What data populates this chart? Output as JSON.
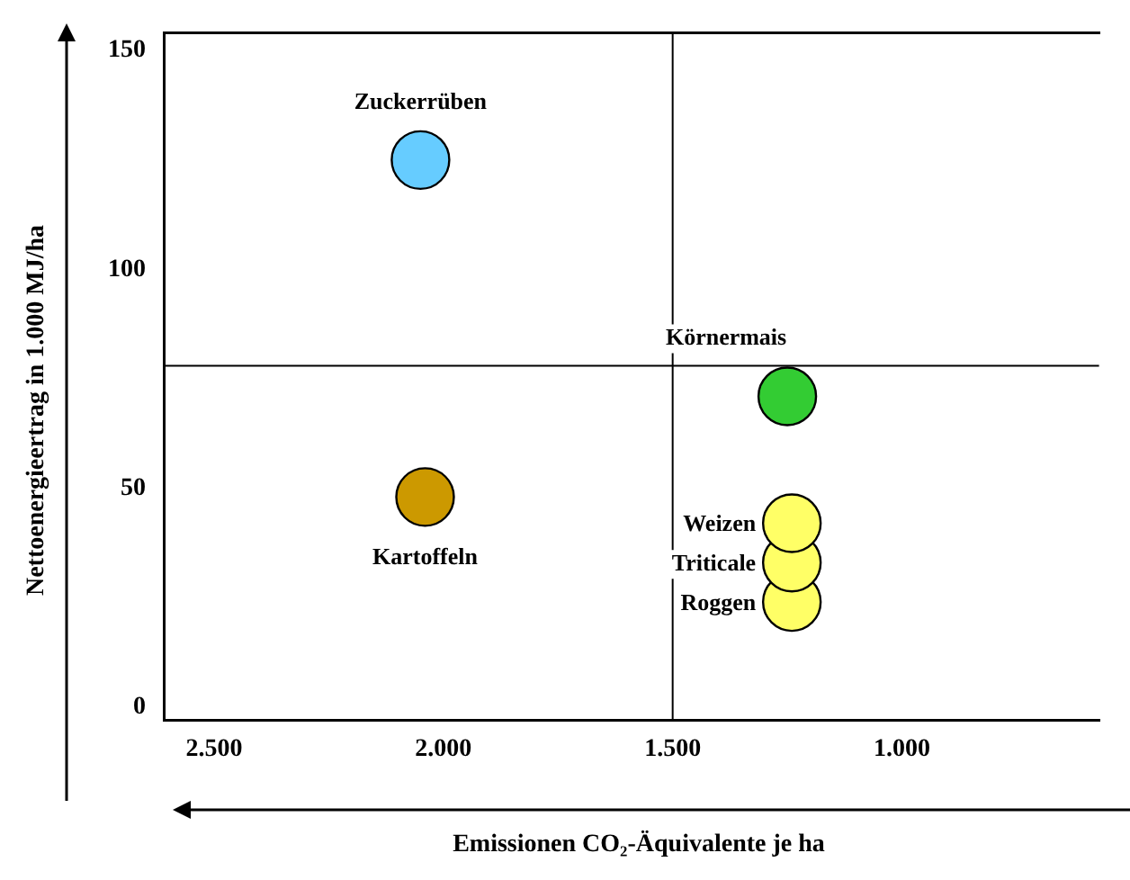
{
  "chart_data": {
    "type": "scatter",
    "xlabel": "Emissionen CO₂-Äquivalente je ha",
    "ylabel": "Nettoenergieertrag in 1.000 MJ/ha",
    "xlim": [
      2610,
      570
    ],
    "xticks": [
      {
        "value": 2500,
        "label": "2.500"
      },
      {
        "value": 2000,
        "label": "2.000"
      },
      {
        "value": 1500,
        "label": "1.500"
      },
      {
        "value": 1000,
        "label": "1.000"
      }
    ],
    "ylim": [
      -3,
      154
    ],
    "yticks": [
      0,
      50,
      100,
      150
    ],
    "grid": false,
    "legend": false,
    "marker": "circle",
    "ref_lines": [
      {
        "axis": "x",
        "value": 1500,
        "color": "#000000"
      },
      {
        "axis": "y",
        "value": 78,
        "color": "#000000"
      }
    ],
    "series": [
      {
        "name": "Zuckerrüben",
        "color": "#66ccff",
        "x": [
          2050
        ],
        "values": [
          125
        ]
      },
      {
        "name": "Kartoffeln",
        "color": "#cc9900",
        "x": [
          2040
        ],
        "values": [
          48
        ]
      },
      {
        "name": "Körnermais",
        "color": "#33cc33",
        "x": [
          1250
        ],
        "values": [
          71
        ]
      },
      {
        "name": "Weizen",
        "color": "#ffff66",
        "x": [
          1240
        ],
        "values": [
          42
        ]
      },
      {
        "name": "Triticale",
        "color": "#ffff66",
        "x": [
          1240
        ],
        "values": [
          33
        ]
      },
      {
        "name": "Roggen",
        "color": "#ffff66",
        "x": [
          1240
        ],
        "values": [
          24
        ]
      }
    ]
  }
}
